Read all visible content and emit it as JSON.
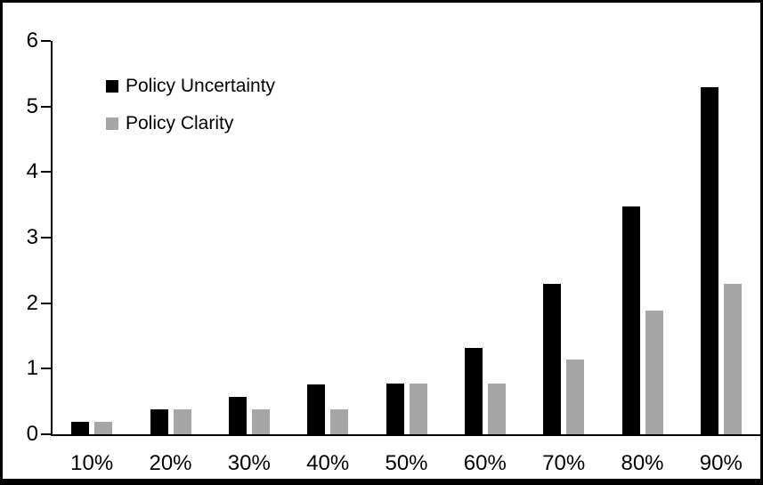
{
  "figure": {
    "background": "#ffffff",
    "frame_color": "#000000",
    "axis_color": "#000000"
  },
  "chart_data": {
    "type": "bar",
    "title": "",
    "xlabel": "",
    "ylabel": "",
    "categories": [
      "10%",
      "20%",
      "30%",
      "40%",
      "50%",
      "60%",
      "70%",
      "80%",
      "90%"
    ],
    "series": [
      {
        "name": "Policy Uncertainty",
        "color": "#000000",
        "values": [
          0.19,
          0.38,
          0.57,
          0.76,
          0.77,
          1.32,
          2.3,
          3.48,
          5.3
        ]
      },
      {
        "name": "Policy Clarity",
        "color": "#a6a6a6",
        "values": [
          0.19,
          0.38,
          0.38,
          0.38,
          0.77,
          0.77,
          1.14,
          1.89,
          2.29
        ]
      }
    ],
    "ylim": [
      0,
      6
    ],
    "yticks": [
      0,
      1,
      2,
      3,
      4,
      5,
      6
    ],
    "grid": false,
    "legend_position": "top-left-inside"
  }
}
